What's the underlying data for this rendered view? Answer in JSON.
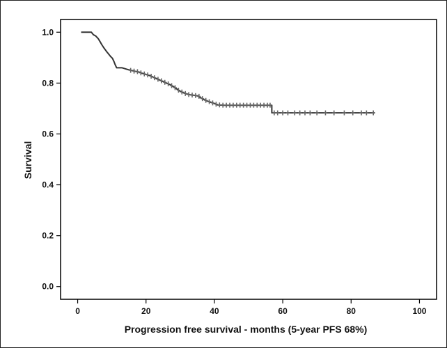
{
  "chart_data": {
    "type": "line",
    "title": "",
    "xlabel": "Progression free survival - months (5-year PFS 68%)",
    "ylabel": "Survival",
    "xlim": [
      -5,
      105
    ],
    "ylim": [
      -0.05,
      1.05
    ],
    "x_ticks": [
      "0",
      "20",
      "40",
      "60",
      "80",
      "100"
    ],
    "y_ticks": [
      "0.0",
      "0.2",
      "0.4",
      "0.6",
      "0.8",
      "1.0"
    ],
    "grid": false,
    "legend": "none",
    "line_color": "#333333",
    "censor_color": "#666666",
    "series": [
      {
        "curve": [
          [
            1.0,
            1.0
          ],
          [
            4.0,
            1.0
          ],
          [
            4.6,
            0.99
          ],
          [
            5.3,
            0.985
          ],
          [
            6.0,
            0.975
          ],
          [
            6.6,
            0.962
          ],
          [
            7.1,
            0.95
          ],
          [
            7.7,
            0.938
          ],
          [
            8.4,
            0.925
          ],
          [
            9.0,
            0.915
          ],
          [
            9.6,
            0.905
          ],
          [
            10.2,
            0.897
          ],
          [
            10.6,
            0.885
          ],
          [
            11.0,
            0.872
          ],
          [
            11.4,
            0.86
          ],
          [
            13.0,
            0.86
          ],
          [
            14.0,
            0.856
          ],
          [
            15.0,
            0.852
          ],
          [
            16.0,
            0.849
          ],
          [
            17.0,
            0.846
          ],
          [
            18.0,
            0.843
          ],
          [
            19.0,
            0.838
          ],
          [
            20.0,
            0.834
          ],
          [
            21.0,
            0.83
          ],
          [
            22.0,
            0.824
          ],
          [
            23.0,
            0.818
          ],
          [
            24.0,
            0.812
          ],
          [
            25.0,
            0.806
          ],
          [
            26.0,
            0.8
          ],
          [
            27.0,
            0.794
          ],
          [
            28.0,
            0.786
          ],
          [
            29.0,
            0.777
          ],
          [
            30.0,
            0.768
          ],
          [
            31.0,
            0.762
          ],
          [
            32.0,
            0.757
          ],
          [
            33.0,
            0.754
          ],
          [
            34.0,
            0.752
          ],
          [
            35.0,
            0.75
          ],
          [
            36.0,
            0.742
          ],
          [
            37.0,
            0.735
          ],
          [
            38.0,
            0.729
          ],
          [
            39.0,
            0.724
          ],
          [
            40.0,
            0.72
          ],
          [
            41.0,
            0.714
          ],
          [
            43.0,
            0.713
          ],
          [
            56.8,
            0.713
          ],
          [
            56.8,
            0.683
          ],
          [
            87.0,
            0.683
          ]
        ],
        "censored": [
          [
            15.5,
            0.85
          ],
          [
            16.5,
            0.847
          ],
          [
            17.5,
            0.845
          ],
          [
            18.5,
            0.84
          ],
          [
            19.5,
            0.836
          ],
          [
            20.5,
            0.832
          ],
          [
            21.5,
            0.827
          ],
          [
            22.5,
            0.821
          ],
          [
            23.5,
            0.815
          ],
          [
            24.5,
            0.809
          ],
          [
            25.5,
            0.803
          ],
          [
            26.5,
            0.797
          ],
          [
            27.5,
            0.79
          ],
          [
            28.5,
            0.782
          ],
          [
            29.5,
            0.772
          ],
          [
            30.5,
            0.765
          ],
          [
            31.5,
            0.759
          ],
          [
            32.5,
            0.755
          ],
          [
            33.5,
            0.753
          ],
          [
            34.5,
            0.751
          ],
          [
            35.5,
            0.748
          ],
          [
            36.5,
            0.739
          ],
          [
            37.5,
            0.732
          ],
          [
            38.5,
            0.727
          ],
          [
            39.5,
            0.722
          ],
          [
            40.5,
            0.717
          ],
          [
            41.5,
            0.714
          ],
          [
            42.5,
            0.713
          ],
          [
            43.5,
            0.713
          ],
          [
            44.5,
            0.713
          ],
          [
            45.5,
            0.713
          ],
          [
            46.5,
            0.713
          ],
          [
            47.5,
            0.713
          ],
          [
            48.5,
            0.713
          ],
          [
            49.5,
            0.713
          ],
          [
            50.5,
            0.713
          ],
          [
            51.5,
            0.713
          ],
          [
            52.5,
            0.713
          ],
          [
            53.5,
            0.713
          ],
          [
            54.5,
            0.713
          ],
          [
            55.5,
            0.713
          ],
          [
            56.3,
            0.713
          ],
          [
            57.5,
            0.683
          ],
          [
            58.5,
            0.683
          ],
          [
            60.0,
            0.683
          ],
          [
            61.5,
            0.683
          ],
          [
            63.5,
            0.683
          ],
          [
            65.0,
            0.683
          ],
          [
            66.5,
            0.683
          ],
          [
            68.0,
            0.683
          ],
          [
            70.0,
            0.683
          ],
          [
            72.5,
            0.683
          ],
          [
            75.0,
            0.683
          ],
          [
            78.0,
            0.683
          ],
          [
            80.5,
            0.683
          ],
          [
            83.0,
            0.683
          ],
          [
            84.5,
            0.683
          ],
          [
            86.5,
            0.683
          ]
        ]
      }
    ]
  }
}
